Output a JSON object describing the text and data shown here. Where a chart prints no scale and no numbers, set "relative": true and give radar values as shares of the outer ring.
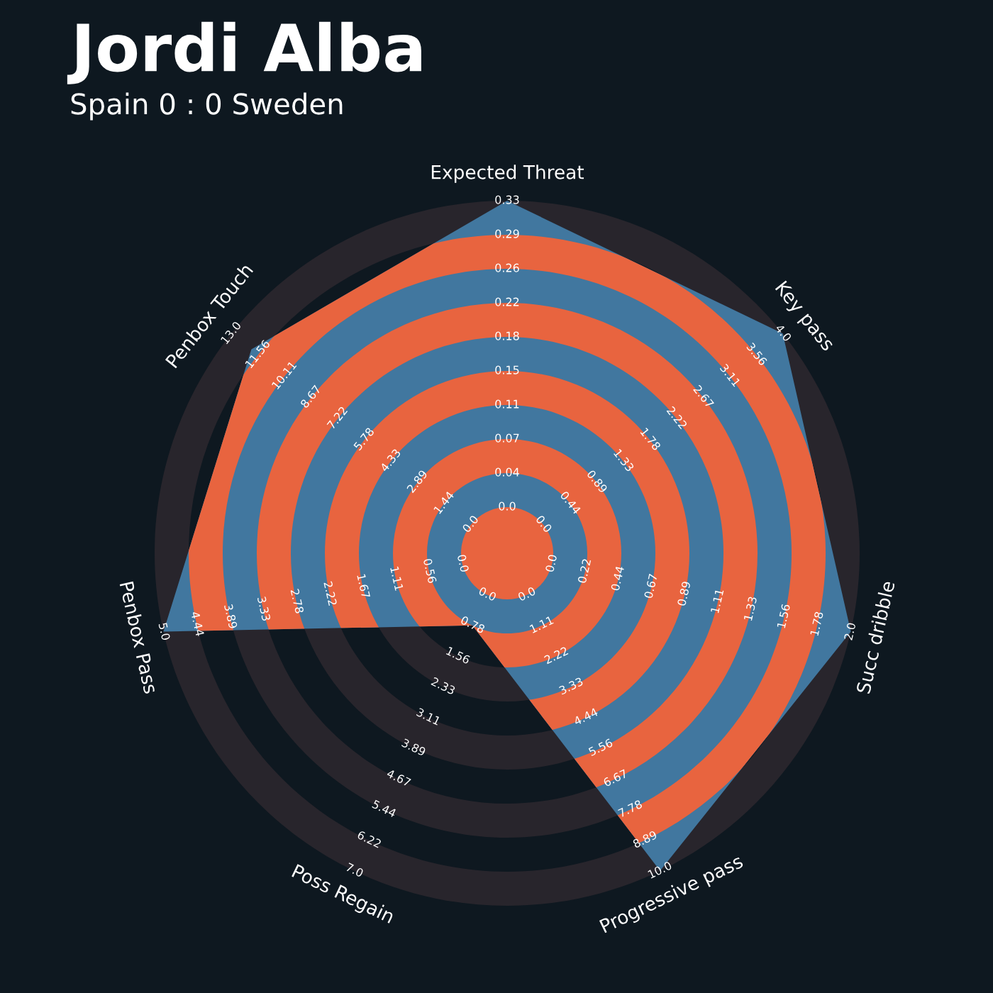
{
  "chart_data": {
    "type": "radar",
    "title": "Jordi Alba",
    "subtitle": "Spain 0 : 0 Sweden",
    "relative": true,
    "categories": [
      "Expected Threat",
      "Key pass",
      "Succ dribble",
      "Progressive pass",
      "Poss Regain",
      "Penbox Pass",
      "Penbox Touch"
    ],
    "series": [
      {
        "color": "#41779f",
        "values": [
          1.0,
          1.0,
          1.0,
          1.0,
          0.227,
          1.0,
          0.928
        ]
      }
    ],
    "annotations": [
      "0.0",
      "0.04",
      "0.07",
      "0.11",
      "0.15",
      "0.18",
      "0.22",
      "0.26",
      "0.29",
      "0.33",
      "0.0",
      "0.44",
      "0.89",
      "1.33",
      "1.78",
      "2.22",
      "2.67",
      "3.11",
      "3.56",
      "4.0",
      "0.0",
      "0.22",
      "0.44",
      "0.67",
      "0.89",
      "1.11",
      "1.33",
      "1.56",
      "1.78",
      "2.0",
      "0.0",
      "1.11",
      "2.22",
      "3.33",
      "4.44",
      "5.56",
      "6.67",
      "7.78",
      "8.89",
      "10.0",
      "0.0",
      "0.78",
      "1.56",
      "2.33",
      "3.11",
      "3.89",
      "4.67",
      "5.44",
      "6.22",
      "7.0",
      "0.0",
      "0.56",
      "1.11",
      "1.67",
      "2.22",
      "2.78",
      "3.33",
      "3.89",
      "4.44",
      "5.0",
      "0.0",
      "1.44",
      "2.89",
      "4.33",
      "5.78",
      "7.22",
      "8.67",
      "10.11",
      "11.56",
      "13.0"
    ]
  }
}
